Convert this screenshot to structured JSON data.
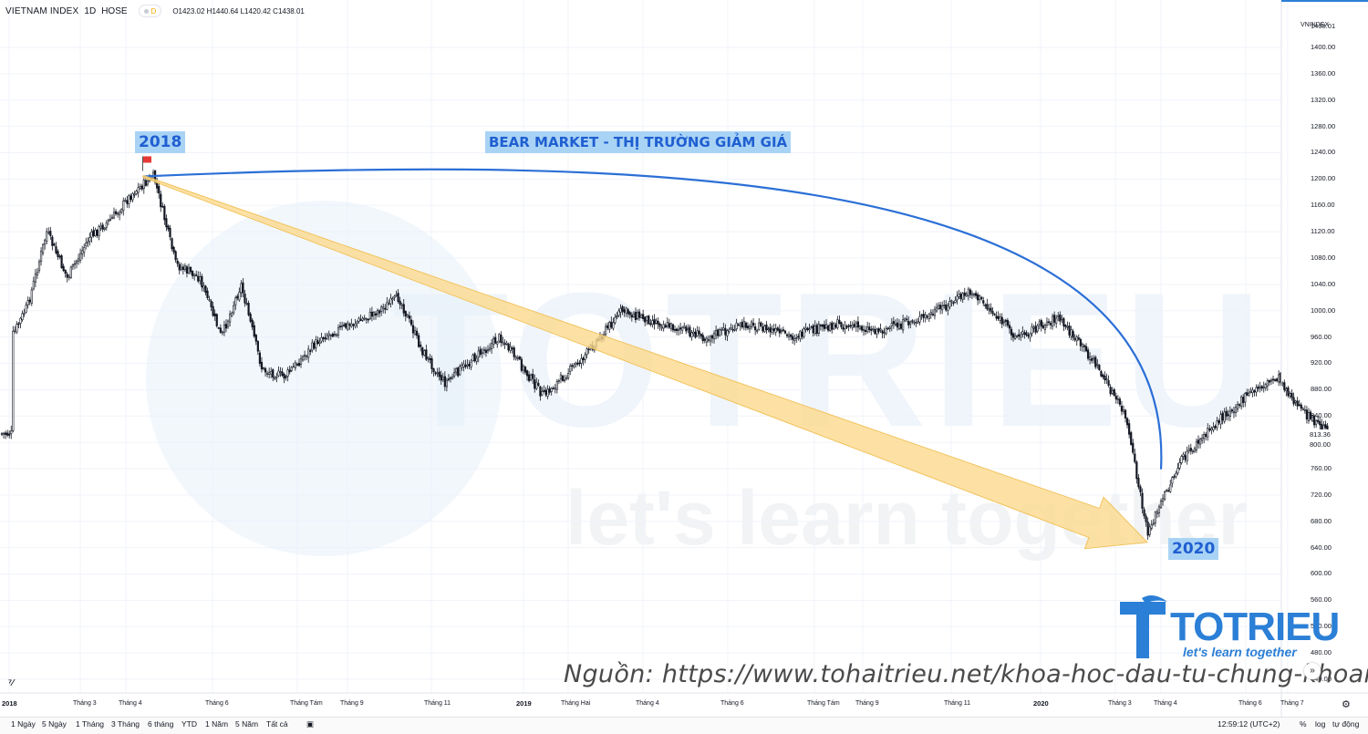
{
  "header": {
    "symbol": "VIETNAM INDEX",
    "interval": "1D",
    "exchange": "HOSE",
    "badge": "D",
    "ohlc": "O1423.02  H1440.64  L1420.42  C1438.01"
  },
  "axis": {
    "ticker": "VNINDEX",
    "current_price": "1438.01",
    "last_price": "813.36",
    "last_value": "800.00"
  },
  "chart_data": {
    "type": "candlestick",
    "ylim": [
      430,
      1450
    ],
    "yticks": [
      440,
      480,
      520,
      560,
      600,
      640,
      680,
      720,
      760,
      800,
      840,
      880,
      920,
      960,
      1000,
      1040,
      1080,
      1120,
      1160,
      1200,
      1240,
      1280,
      1320,
      1360,
      1400
    ],
    "x_tick_labels": [
      "2018",
      "Tháng 3",
      "Tháng 4",
      "Tháng 6",
      "Tháng Tám",
      "Tháng 9",
      "Tháng 11",
      "2019",
      "Tháng Hai",
      "Tháng 4",
      "Tháng 6",
      "Tháng Tám",
      "Tháng 9",
      "Tháng 11",
      "2020",
      "Tháng 3",
      "Tháng 4",
      "Tháng 6",
      "Tháng 7"
    ],
    "price_path": [
      [
        "2018-01",
        960
      ],
      [
        "2018-01",
        1010
      ],
      [
        "2018-02",
        1120
      ],
      [
        "2018-02",
        1050
      ],
      [
        "2018-03",
        1110
      ],
      [
        "2018-03",
        1140
      ],
      [
        "2018-04",
        1180
      ],
      [
        "2018-04",
        1204
      ],
      [
        "2018-05",
        1070
      ],
      [
        "2018-05",
        1050
      ],
      [
        "2018-06",
        960
      ],
      [
        "2018-06",
        1040
      ],
      [
        "2018-07",
        910
      ],
      [
        "2018-07",
        900
      ],
      [
        "2018-08",
        960
      ],
      [
        "2018-09",
        990
      ],
      [
        "2018-10",
        1020
      ],
      [
        "2018-10",
        940
      ],
      [
        "2018-11",
        890
      ],
      [
        "2018-11",
        920
      ],
      [
        "2018-12",
        960
      ],
      [
        "2019-01",
        870
      ],
      [
        "2019-02",
        930
      ],
      [
        "2019-03",
        1000
      ],
      [
        "2019-04",
        980
      ],
      [
        "2019-05",
        960
      ],
      [
        "2019-06",
        980
      ],
      [
        "2019-07",
        960
      ],
      [
        "2019-08",
        980
      ],
      [
        "2019-09",
        970
      ],
      [
        "2019-10",
        990
      ],
      [
        "2019-11",
        1030
      ],
      [
        "2019-12",
        960
      ],
      [
        "2020-01",
        990
      ],
      [
        "2020-02",
        920
      ],
      [
        "2020-03",
        840
      ],
      [
        "2020-03",
        662
      ],
      [
        "2020-04",
        770
      ],
      [
        "2020-05",
        840
      ],
      [
        "2020-06",
        880
      ],
      [
        "2020-06",
        900
      ],
      [
        "2020-07",
        850
      ],
      [
        "2020-07",
        813
      ]
    ],
    "annotations": {
      "title": "BEAR MARKET - THỊ TRƯỜNG GIẢM GIÁ",
      "start_label": "2018",
      "end_label": "2020",
      "peak_value": 1204,
      "trough_value": 662
    }
  },
  "range_buttons": [
    "1 Ngày",
    "5 Ngày",
    "1 Tháng",
    "3 Tháng",
    "6 tháng",
    "YTD",
    "1 Năm",
    "5 Năm",
    "Tất cả"
  ],
  "status_bar": {
    "time": "12:59:12 (UTC+2)",
    "percent": "%",
    "log": "log",
    "auto": "tự động"
  },
  "watermark": {
    "brand": "TOTRIEU",
    "slogan": "let's learn together"
  },
  "logo": {
    "name": "TOTRIEU",
    "tagline": "let's learn together"
  },
  "source": "Nguồn: https://www.tohaitrieu.net/khoa-hoc-dau-tu-chung-khoan/",
  "colors": {
    "candle": "#131722",
    "arc": "#2b6fd6",
    "arrow_fill": "#fcd98a",
    "arrow_stroke": "#f1c35e",
    "label_bg": "#a9d3f5",
    "brand_blue": "#2b7fd6"
  }
}
